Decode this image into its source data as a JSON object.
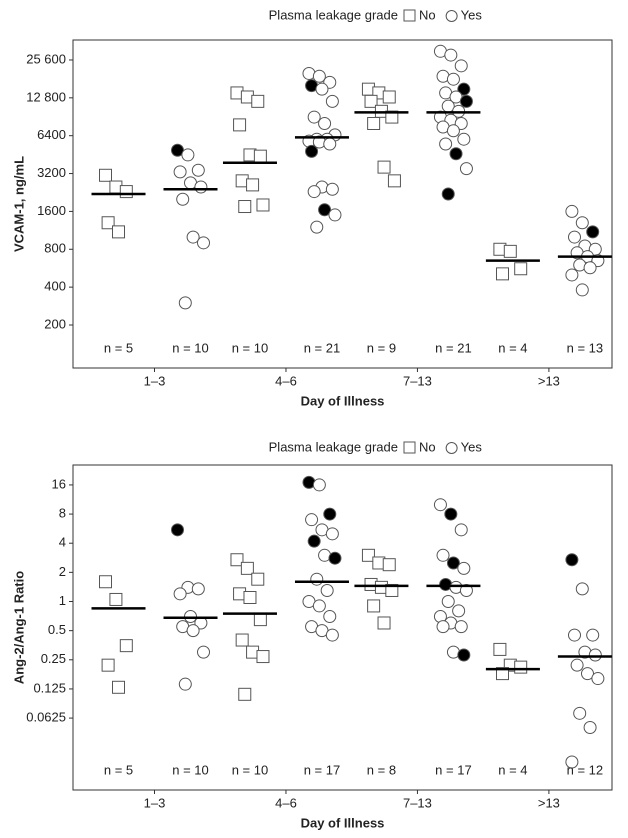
{
  "chart_data": [
    {
      "type": "strip",
      "legend_title": "Plasma leakage grade",
      "ylabel": "VCAM-1, ng/mL",
      "xlabel": "Day of Illness",
      "categories": [
        "1–3",
        "4–6",
        "7–13",
        ">13"
      ],
      "log_scale": true,
      "ylim": [
        91,
        36900
      ],
      "yticks": [
        200,
        400,
        800,
        1600,
        3200,
        6400,
        {
          "value": 12800,
          "label": "12 800"
        },
        {
          "value": 25600,
          "label": "25 600"
        }
      ],
      "series": [
        {
          "name": "No",
          "marker": "square",
          "color": "#555555",
          "values": [
            [
              3100,
              2500,
              2300,
              1300,
              1100
            ],
            [
              14000,
              13000,
              12000,
              7800,
              4500,
              4400,
              2800,
              2600,
              1800,
              1750
            ],
            [
              15000,
              14000,
              13000,
              12000,
              10000,
              9000,
              8000,
              3600,
              2800
            ],
            [
              800,
              770,
              560,
              510
            ]
          ],
          "filled": [
            [
              false,
              false,
              false,
              false,
              false
            ],
            [
              false,
              false,
              false,
              false,
              false,
              false,
              false,
              false,
              false,
              false
            ],
            [
              false,
              false,
              false,
              false,
              false,
              false,
              false,
              false,
              false
            ],
            [
              false,
              false,
              false,
              false
            ]
          ],
          "medians": [
            2200,
            3900,
            9800,
            650
          ],
          "n_labels": [
            "n = 5",
            "n = 10",
            "n = 9",
            "n = 4"
          ]
        },
        {
          "name": "Yes",
          "marker": "circle",
          "color": "#555555",
          "values": [
            [
              4900,
              4500,
              3400,
              3300,
              2700,
              2500,
              2000,
              1000,
              900,
              300
            ],
            [
              20000,
              19000,
              17000,
              16000,
              15000,
              12000,
              9000,
              8000,
              6500,
              6000,
              6000,
              5800,
              5700,
              5500,
              4800,
              2500,
              2400,
              2300,
              1650,
              1500,
              1200
            ],
            [
              30000,
              28000,
              23000,
              19000,
              18000,
              15000,
              14000,
              13000,
              12000,
              11000,
              10000,
              9000,
              8500,
              8000,
              7500,
              7000,
              6000,
              5500,
              4600,
              3500,
              2200
            ],
            [
              1600,
              1300,
              1100,
              1000,
              850,
              800,
              750,
              700,
              650,
              600,
              570,
              500,
              380
            ]
          ],
          "filled": [
            [
              true,
              false,
              false,
              false,
              false,
              false,
              false,
              false,
              false,
              false
            ],
            [
              false,
              false,
              false,
              true,
              false,
              false,
              false,
              false,
              false,
              false,
              false,
              false,
              false,
              false,
              true,
              false,
              false,
              false,
              true,
              false,
              false
            ],
            [
              false,
              false,
              false,
              false,
              false,
              true,
              false,
              false,
              true,
              false,
              false,
              false,
              false,
              false,
              false,
              false,
              false,
              false,
              true,
              false,
              true
            ],
            [
              false,
              false,
              true,
              false,
              false,
              false,
              false,
              false,
              false,
              false,
              false,
              false,
              false
            ]
          ],
          "medians": [
            2400,
            6200,
            9800,
            700
          ],
          "n_labels": [
            "n = 10",
            "n = 21",
            "n = 21",
            "n = 13"
          ]
        }
      ]
    },
    {
      "type": "strip",
      "legend_title": "Plasma leakage grade",
      "ylabel": "Ang-2/Ang-1 Ratio",
      "xlabel": "Day of Illness",
      "categories": [
        "1–3",
        "4–6",
        "7–13",
        ">13"
      ],
      "log_scale": true,
      "ylim": [
        0.0113,
        25.7
      ],
      "yticks": [
        0.0625,
        0.125,
        0.25,
        0.5,
        1,
        2,
        4,
        8,
        16
      ],
      "series": [
        {
          "name": "No",
          "marker": "square",
          "color": "#555555",
          "values": [
            [
              1.6,
              1.05,
              0.35,
              0.22,
              0.13
            ],
            [
              2.7,
              2.2,
              1.7,
              1.2,
              1.1,
              0.65,
              0.4,
              0.3,
              0.27,
              0.11
            ],
            [
              3,
              2.5,
              2.4,
              1.5,
              1.4,
              1.3,
              0.9,
              0.6
            ],
            [
              0.32,
              0.22,
              0.21,
              0.18
            ]
          ],
          "filled": [
            [
              false,
              false,
              false,
              false,
              false
            ],
            [
              false,
              false,
              false,
              false,
              false,
              false,
              false,
              false,
              false,
              false
            ],
            [
              false,
              false,
              false,
              false,
              false,
              false,
              false,
              false
            ],
            [
              false,
              false,
              false,
              false
            ]
          ],
          "medians": [
            0.85,
            0.75,
            1.45,
            0.2
          ],
          "n_labels": [
            "n = 5",
            "n = 10",
            "n = 8",
            "n = 4"
          ]
        },
        {
          "name": "Yes",
          "marker": "circle",
          "color": "#555555",
          "values": [
            [
              5.5,
              1.4,
              1.35,
              1.2,
              0.7,
              0.6,
              0.55,
              0.5,
              0.3,
              0.14
            ],
            [
              17,
              16,
              8,
              7,
              5.5,
              5,
              4.2,
              3,
              2.8,
              1.7,
              1.3,
              1,
              0.9,
              0.7,
              0.55,
              0.5,
              0.45
            ],
            [
              10,
              8,
              5.5,
              3,
              2.5,
              2.2,
              1.5,
              1.4,
              1.3,
              1,
              0.8,
              0.7,
              0.6,
              0.55,
              0.55,
              0.3,
              0.28
            ],
            [
              2.7,
              1.35,
              0.45,
              0.45,
              0.3,
              0.28,
              0.22,
              0.18,
              0.16,
              0.07,
              0.05,
              0.022
            ]
          ],
          "filled": [
            [
              true,
              false,
              false,
              false,
              false,
              false,
              false,
              false,
              false,
              false
            ],
            [
              true,
              false,
              true,
              false,
              false,
              false,
              true,
              false,
              true,
              false,
              false,
              false,
              false,
              false,
              false,
              false,
              false
            ],
            [
              false,
              true,
              false,
              false,
              true,
              false,
              true,
              false,
              false,
              false,
              false,
              false,
              false,
              false,
              false,
              false,
              true
            ],
            [
              true,
              false,
              false,
              false,
              false,
              false,
              false,
              false,
              false,
              false,
              false,
              false
            ]
          ],
          "medians": [
            0.68,
            1.6,
            1.45,
            0.27
          ],
          "n_labels": [
            "n = 10",
            "n = 17",
            "n = 17",
            "n = 12"
          ]
        }
      ]
    }
  ]
}
